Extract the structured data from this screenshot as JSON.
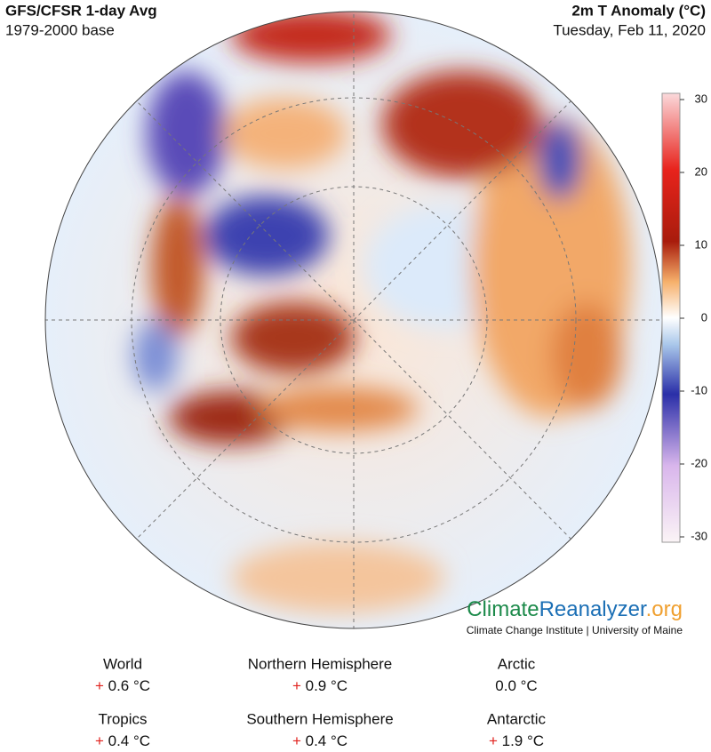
{
  "header": {
    "title": "GFS/CFSR 1-day Avg",
    "subtitle": "1979-2000 base",
    "variable": "2m T Anomaly (°C)",
    "date": "Tuesday, Feb 11, 2020"
  },
  "colorbar": {
    "lim": [
      -30,
      30
    ],
    "ticks": [
      30,
      20,
      10,
      0,
      -10,
      -20,
      -30
    ]
  },
  "branding": {
    "name_parts": [
      "Climate",
      "Reanalyzer",
      ".org"
    ],
    "tagline": "Climate Change Institute | University of Maine"
  },
  "stats": [
    {
      "label": "World",
      "sign": "+",
      "value": "0.6 °C"
    },
    {
      "label": "Northern Hemisphere",
      "sign": "+",
      "value": "0.9 °C"
    },
    {
      "label": "Arctic",
      "sign": "",
      "value": "0.0 °C"
    },
    {
      "label": "Tropics",
      "sign": "+",
      "value": "0.4 °C"
    },
    {
      "label": "Southern Hemisphere",
      "sign": "+",
      "value": "0.4 °C"
    },
    {
      "label": "Antarctic",
      "sign": "+",
      "value": "1.9 °C"
    }
  ]
}
